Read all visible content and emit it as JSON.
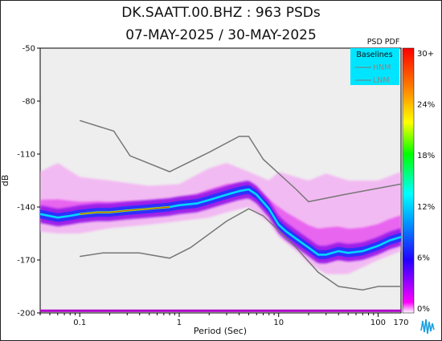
{
  "chart_data": {
    "type": "heatmap",
    "title_line1": "DK.SAATT.00.BHZ : 963 PSDs",
    "title_line2": "07-MAY-2025 / 30-MAY-2025",
    "xlabel": "Period (Sec)",
    "ylabel": "dB",
    "x_scale": "log",
    "xlim": [
      0.04,
      170
    ],
    "ylim": [
      -200,
      -50
    ],
    "x_ticks": [
      {
        "value": 0.1,
        "label": "0.1"
      },
      {
        "value": 1,
        "label": "1"
      },
      {
        "value": 10,
        "label": "10"
      },
      {
        "value": 100,
        "label": "100"
      },
      {
        "value": 170,
        "label": "170"
      }
    ],
    "y_ticks": [
      {
        "value": -50,
        "label": "-50"
      },
      {
        "value": -80,
        "label": "-80"
      },
      {
        "value": -110,
        "label": "-110"
      },
      {
        "value": -140,
        "label": "-140"
      },
      {
        "value": -170,
        "label": "-170"
      },
      {
        "value": -200,
        "label": "-200"
      }
    ],
    "colorbar": {
      "title": "PSD PDF",
      "ticks": [
        "30+",
        "24%",
        "18%",
        "12%",
        "6%",
        "0%"
      ]
    },
    "legend": {
      "title": "Baselines",
      "entries": [
        "HNM",
        "LNM"
      ],
      "position": "top-right"
    },
    "baselines": [
      {
        "name": "HNM",
        "x": [
          0.1,
          0.22,
          0.32,
          0.8,
          2,
          4,
          5,
          7,
          15,
          20,
          45,
          170
        ],
        "y": [
          -91,
          -97,
          -111,
          -120,
          -109,
          -100,
          -100,
          -113,
          -130,
          -137,
          -133,
          -127
        ]
      },
      {
        "name": "LNM",
        "x": [
          0.1,
          0.17,
          0.4,
          0.8,
          1.3,
          3,
          5,
          7,
          15,
          25,
          40,
          70,
          100,
          170
        ],
        "y": [
          -168,
          -166,
          -166,
          -169,
          -163,
          -148,
          -141,
          -145,
          -163,
          -177,
          -185,
          -187,
          -185,
          -185
        ]
      }
    ],
    "mode_curve": {
      "x": [
        0.04,
        0.06,
        0.08,
        0.1,
        0.15,
        0.2,
        0.3,
        0.5,
        0.8,
        1.0,
        1.5,
        2,
        3,
        4,
        5,
        6,
        8,
        10,
        12,
        15,
        20,
        25,
        30,
        40,
        50,
        70,
        100,
        130,
        170
      ],
      "y": [
        -144,
        -146,
        -145,
        -144,
        -143,
        -143,
        -142,
        -141,
        -140,
        -139,
        -138,
        -136,
        -133,
        -131,
        -130,
        -133,
        -141,
        -150,
        -154,
        -158,
        -163,
        -167,
        -167,
        -165,
        -166,
        -165,
        -162,
        -159,
        -157
      ]
    },
    "spread_upper": {
      "x": [
        0.04,
        0.06,
        0.1,
        0.2,
        0.5,
        1,
        2,
        3,
        5,
        8,
        10,
        15,
        20,
        30,
        50,
        100,
        170
      ],
      "y": [
        -120,
        -115,
        -123,
        -125,
        -128,
        -127,
        -118,
        -115,
        -120,
        -125,
        -120,
        -123,
        -125,
        -121,
        -125,
        -125,
        -120
      ]
    },
    "spread_lower": {
      "x": [
        0.04,
        0.06,
        0.1,
        0.2,
        0.5,
        1,
        2,
        3,
        5,
        8,
        10,
        15,
        20,
        30,
        50,
        100,
        170
      ],
      "y": [
        -154,
        -155,
        -155,
        -152,
        -150,
        -148,
        -146,
        -143,
        -140,
        -149,
        -157,
        -165,
        -172,
        -178,
        -178,
        -170,
        -165
      ]
    },
    "floor_band_y": -199,
    "colors": {
      "background": "#eeeeee",
      "baseline": "#777777",
      "legend_bg": "#00e5ff",
      "floor_band": "#b000c8"
    }
  }
}
